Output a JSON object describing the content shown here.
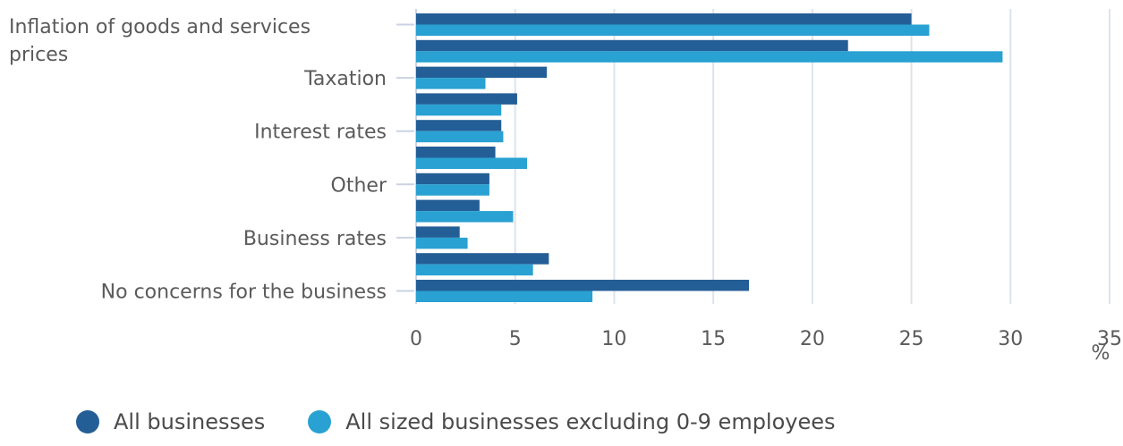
{
  "chart_data": {
    "type": "bar",
    "orientation": "horizontal",
    "categories": [
      "Inflation of goods and services prices",
      "",
      "Taxation",
      "",
      "Interest rates",
      "",
      "Other",
      "",
      "Business rates",
      "",
      "No concerns for the business"
    ],
    "series": [
      {
        "name": "All businesses",
        "color": "#245e96",
        "values": [
          25.0,
          21.8,
          6.6,
          5.1,
          4.3,
          4.0,
          3.7,
          3.2,
          2.2,
          6.7,
          16.8
        ]
      },
      {
        "name": "All sized businesses excluding 0-9 employees",
        "color": "#29a1d2",
        "values": [
          25.9,
          29.6,
          3.5,
          4.3,
          4.4,
          5.6,
          3.7,
          4.9,
          2.6,
          5.9,
          8.9
        ]
      }
    ],
    "xlim": [
      0,
      35
    ],
    "xticks": [
      "0",
      "5",
      "10",
      "15",
      "20",
      "25",
      "30",
      "35"
    ],
    "xlabel": "%",
    "grid": true,
    "legend_position": "bottom-left"
  }
}
